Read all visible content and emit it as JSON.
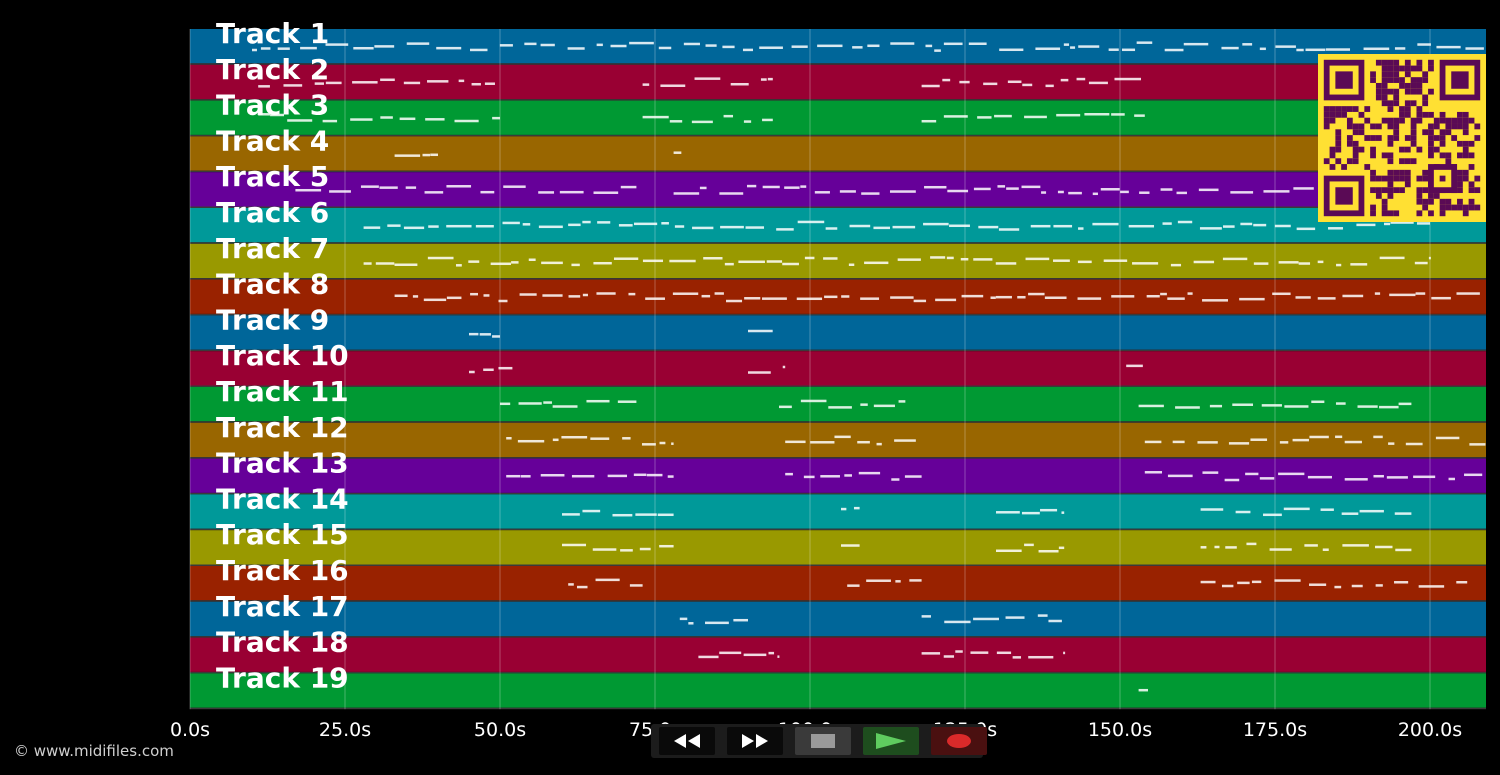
{
  "copyright": "© www.midifiles.com",
  "time_axis": {
    "ticks": [
      "0.0s",
      "25.0s",
      "50.0s",
      "75.0s",
      "100.0s",
      "125.0s",
      "150.0s",
      "175.0s",
      "200.0s"
    ]
  },
  "tracks": [
    {
      "label": "Track 1",
      "color": "#006699"
    },
    {
      "label": "Track 2",
      "color": "#990033"
    },
    {
      "label": "Track 3",
      "color": "#009933"
    },
    {
      "label": "Track 4",
      "color": "#996600"
    },
    {
      "label": "Track 5",
      "color": "#660099"
    },
    {
      "label": "Track 6",
      "color": "#009999"
    },
    {
      "label": "Track 7",
      "color": "#999900"
    },
    {
      "label": "Track 8",
      "color": "#992200"
    },
    {
      "label": "Track 9",
      "color": "#006699"
    },
    {
      "label": "Track 10",
      "color": "#990033"
    },
    {
      "label": "Track 11",
      "color": "#009933"
    },
    {
      "label": "Track 12",
      "color": "#996600"
    },
    {
      "label": "Track 13",
      "color": "#660099"
    },
    {
      "label": "Track 14",
      "color": "#009999"
    },
    {
      "label": "Track 15",
      "color": "#999900"
    },
    {
      "label": "Track 16",
      "color": "#992200"
    },
    {
      "label": "Track 17",
      "color": "#006699"
    },
    {
      "label": "Track 18",
      "color": "#990033"
    },
    {
      "label": "Track 19",
      "color": "#009933"
    }
  ],
  "controls": [
    {
      "icon": "rewind-icon",
      "name": "rewind-button"
    },
    {
      "icon": "fast-forward-icon",
      "name": "fast-forward-button"
    },
    {
      "icon": "stop-icon",
      "name": "stop-button"
    },
    {
      "icon": "play-icon",
      "name": "play-button"
    },
    {
      "icon": "record-icon",
      "name": "record-button"
    }
  ],
  "qr": {
    "fg": "#5a0a55",
    "bg": "#ffe033"
  }
}
